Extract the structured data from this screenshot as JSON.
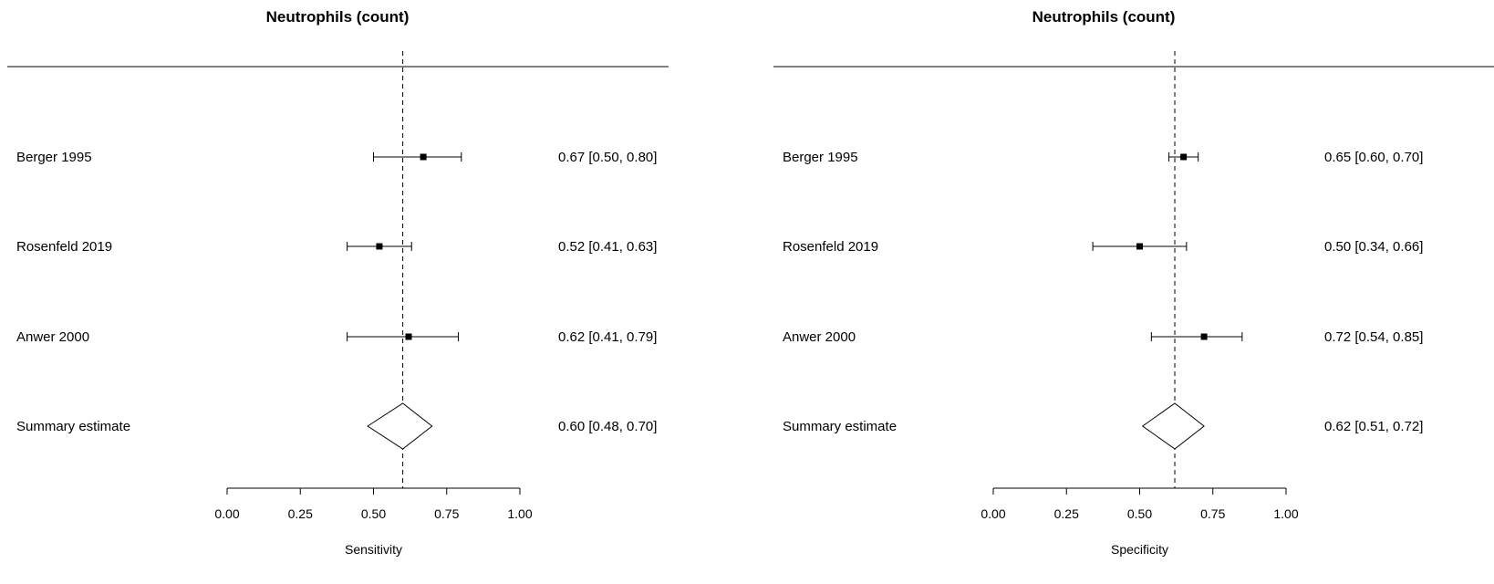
{
  "chart_data": [
    {
      "type": "forest",
      "title": "Neutrophils (count)",
      "xlabel": "Sensitivity",
      "xlim": [
        0,
        1
      ],
      "xticks": [
        "0.00",
        "0.25",
        "0.50",
        "0.75",
        "1.00"
      ],
      "reference_line": 0.6,
      "studies": [
        {
          "name": "Berger 1995",
          "estimate": 0.67,
          "lower": 0.5,
          "upper": 0.8,
          "label": "0.67 [0.50, 0.80]"
        },
        {
          "name": "Rosenfeld 2019",
          "estimate": 0.52,
          "lower": 0.41,
          "upper": 0.63,
          "label": "0.52 [0.41, 0.63]"
        },
        {
          "name": "Anwer 2000",
          "estimate": 0.62,
          "lower": 0.41,
          "upper": 0.79,
          "label": "0.62 [0.41, 0.79]"
        }
      ],
      "summary": {
        "name": "Summary estimate",
        "estimate": 0.6,
        "lower": 0.48,
        "upper": 0.7,
        "label": "0.60 [0.48, 0.70]"
      }
    },
    {
      "type": "forest",
      "title": "Neutrophils (count)",
      "xlabel": "Specificity",
      "xlim": [
        0,
        1
      ],
      "xticks": [
        "0.00",
        "0.25",
        "0.50",
        "0.75",
        "1.00"
      ],
      "reference_line": 0.62,
      "studies": [
        {
          "name": "Berger 1995",
          "estimate": 0.65,
          "lower": 0.6,
          "upper": 0.7,
          "label": "0.65 [0.60, 0.70]"
        },
        {
          "name": "Rosenfeld 2019",
          "estimate": 0.5,
          "lower": 0.34,
          "upper": 0.66,
          "label": "0.50 [0.34, 0.66]"
        },
        {
          "name": "Anwer 2000",
          "estimate": 0.72,
          "lower": 0.54,
          "upper": 0.85,
          "label": "0.72 [0.54, 0.85]"
        }
      ],
      "summary": {
        "name": "Summary estimate",
        "estimate": 0.62,
        "lower": 0.51,
        "upper": 0.72,
        "label": "0.62 [0.51, 0.72]"
      }
    }
  ]
}
